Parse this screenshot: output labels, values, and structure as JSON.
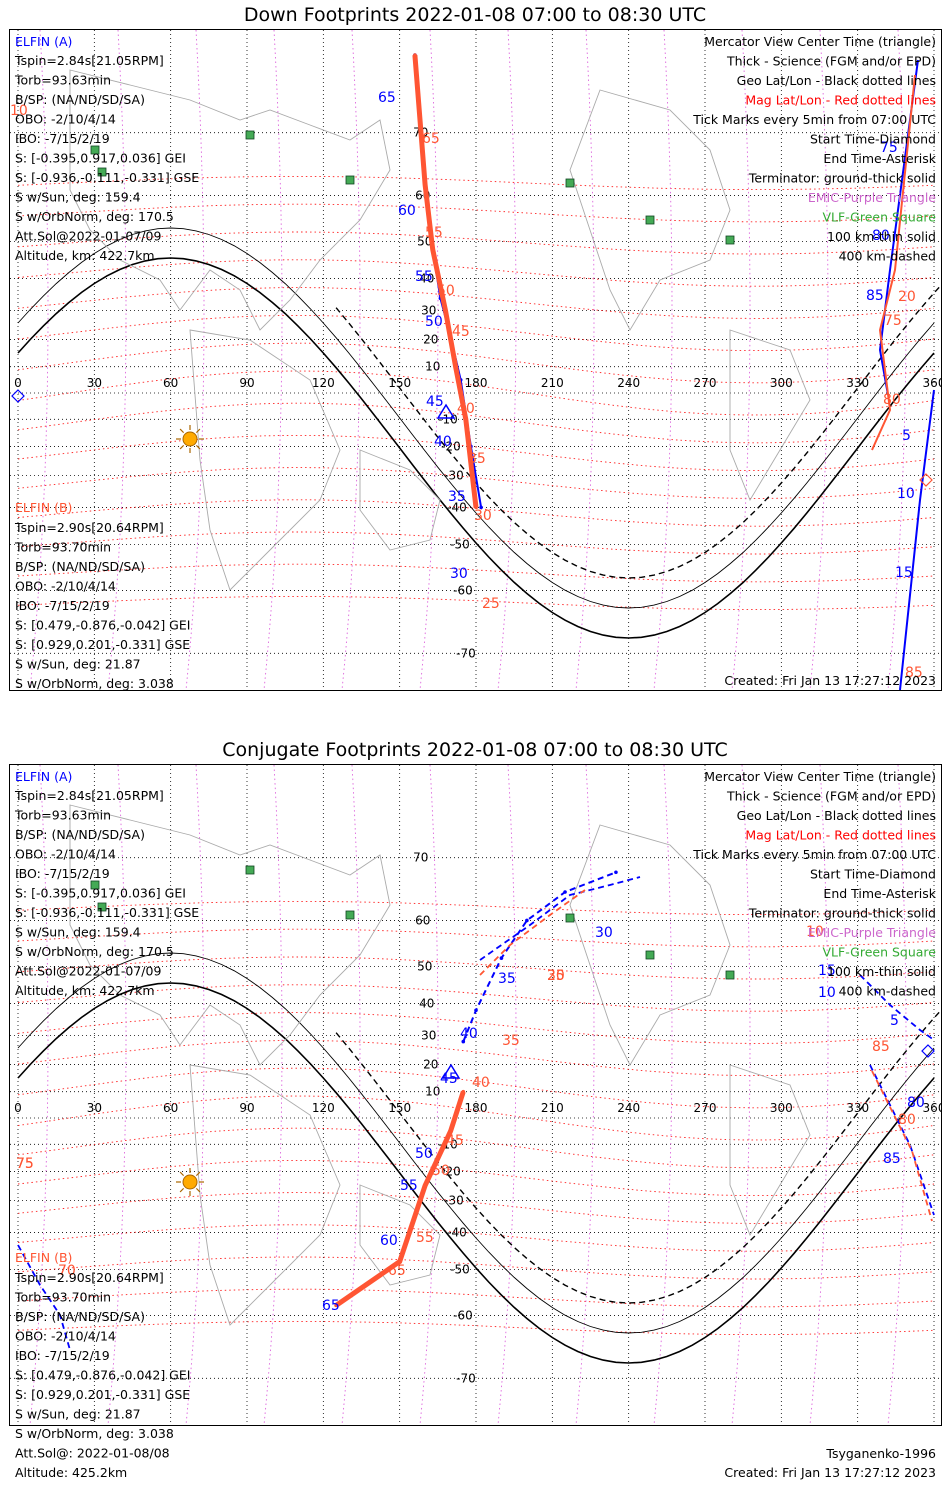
{
  "panels": [
    {
      "title": "Down Footprints 2022-01-08 07:00 to 08:30 UTC",
      "elfin_a": {
        "label": "ELFIN (A)",
        "lines": [
          "Tspin=2.84s[21.05RPM]",
          "Torb=93.63min",
          "B/SP: (NA/ND/SD/SA)",
          "OBO: -2/10/4/14",
          "IBO: -7/15/2/19",
          "S: [-0.395,0.917,0.036] GEI",
          "S: [-0.936,-0.111,-0.331] GSE",
          "S w/Sun, deg: 159.4",
          "S w/OrbNorm, deg: 170.5",
          "Att.Sol@2022-01-07/09",
          "Altitude, km: 422.7km"
        ]
      },
      "elfin_b": {
        "label": "ELFIN (B)",
        "lines": [
          "Tspin=2.90s[20.64RPM]",
          "Torb=93.70min",
          "B/SP: (NA/ND/SD/SA)",
          "OBO: -2/10/4/14",
          "IBO: -7/15/2/19",
          "S: [0.479,-0.876,-0.042] GEI",
          "S: [0.929,0.201,-0.331] GSE",
          "S w/Sun, deg: 21.87",
          "S w/OrbNorm, deg: 3.038",
          "Att.Sol@: 2022-01-08/08",
          "Altitude: 425.2km"
        ]
      },
      "legend": [
        {
          "text": "Mercator View Center Time (triangle)",
          "color": "#000000"
        },
        {
          "text": "Thick - Science (FGM and/or EPD)",
          "color": "#000000"
        },
        {
          "text": "Geo Lat/Lon - Black dotted lines",
          "color": "#000000"
        },
        {
          "text": "Mag Lat/Lon - Red dotted lines",
          "color": "#ff0000"
        },
        {
          "text": "Tick Marks every 5min from 07:00 UTC",
          "color": "#000000"
        },
        {
          "text": "Start Time-Diamond",
          "color": "#000000"
        },
        {
          "text": "End Time-Asterisk",
          "color": "#000000"
        },
        {
          "text": "Terminator: ground-thick solid",
          "color": "#000000"
        },
        {
          "text": "EMIC-Purple Triangle",
          "color": "#cc66cc"
        },
        {
          "text": "VLF-Green Square",
          "color": "#33aa33"
        },
        {
          "text": "100 km-thin solid",
          "color": "#000000"
        },
        {
          "text": "400 km-dashed",
          "color": "#000000"
        }
      ],
      "footer_left": "Tsyganenko-1996",
      "footer_right": "Created: Fri Jan 13 17:27:12 2023",
      "lon_ticks": [
        "0",
        "30",
        "60",
        "90",
        "120",
        "150",
        "180",
        "210",
        "240",
        "270",
        "300",
        "330",
        "360"
      ],
      "lat_ticks": [
        "70",
        "60",
        "50",
        "40",
        "30",
        "20",
        "10",
        "-10",
        "-20",
        "-30",
        "-40",
        "-50",
        "-60",
        "-70"
      ],
      "track_a_labels": [
        "65",
        "60",
        "55",
        "50",
        "45",
        "40",
        "35",
        "30",
        "5",
        "10",
        "15",
        "75",
        "80",
        "85"
      ],
      "track_b_labels": [
        "65",
        "55",
        "50",
        "45",
        "40",
        "35",
        "30",
        "25",
        "20",
        "75",
        "80",
        "85",
        "10"
      ]
    },
    {
      "title": "Conjugate Footprints 2022-01-08 07:00 to 08:30 UTC",
      "track_a_labels": [
        "65",
        "60",
        "55",
        "50",
        "45",
        "40",
        "35",
        "30",
        "5",
        "10",
        "15",
        "80",
        "85"
      ],
      "track_b_labels": [
        "65",
        "55",
        "50",
        "45",
        "40",
        "35",
        "30",
        "25",
        "75",
        "80",
        "85",
        "10",
        "70",
        "75"
      ]
    }
  ],
  "chart_data": [
    {
      "type": "scatter",
      "title": "Down Footprints 2022-01-08 07:00 to 08:30 UTC",
      "x_range": [
        0,
        360
      ],
      "y_range": [
        -80,
        80
      ],
      "series": [
        {
          "name": "ELFIN (A)",
          "color": "#0000ff",
          "x": [
            156,
            160,
            163,
            166,
            170,
            174,
            178,
            182
          ],
          "y": [
            78,
            62,
            48,
            34,
            21,
            5,
            -20,
            -40
          ]
        },
        {
          "name": "ELFIN (B)",
          "color": "#ff5533",
          "x": [
            156,
            160,
            163,
            168,
            172,
            176,
            180
          ],
          "y": [
            78,
            62,
            48,
            30,
            10,
            -10,
            -40
          ]
        }
      ]
    },
    {
      "type": "scatter",
      "title": "Conjugate Footprints 2022-01-08 07:00 to 08:30 UTC",
      "x_range": [
        0,
        360
      ],
      "y_range": [
        -80,
        80
      ],
      "series": [
        {
          "name": "ELFIN (A)",
          "color": "#0000ff",
          "x": [
            175,
            180,
            190,
            200,
            215,
            235
          ],
          "y": [
            28,
            38,
            52,
            60,
            65,
            68
          ]
        },
        {
          "name": "ELFIN (B)",
          "color": "#ff5533",
          "x": [
            125,
            150,
            160,
            170,
            175
          ],
          "y": [
            -58,
            -48,
            -25,
            -5,
            10
          ]
        }
      ]
    }
  ]
}
